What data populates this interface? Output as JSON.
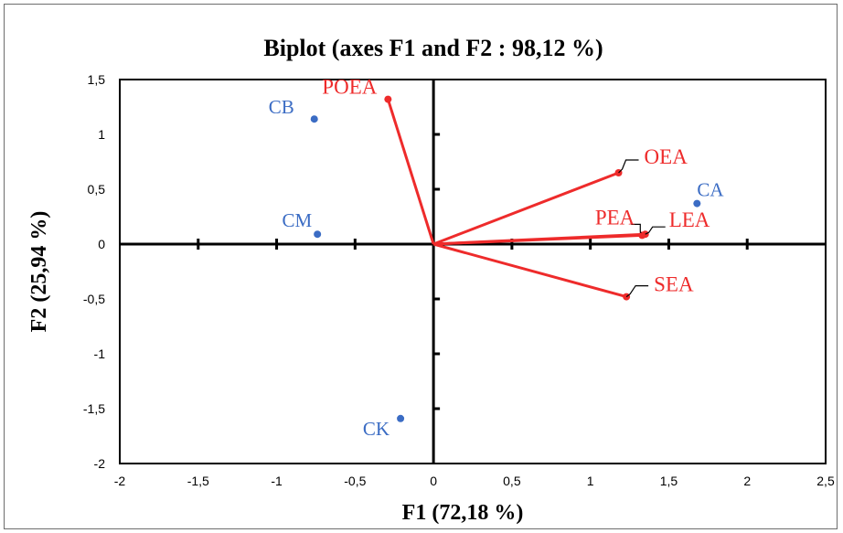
{
  "chart_data": {
    "type": "scatter",
    "title": "Biplot (axes F1 and F2 : 98,12 %)",
    "xlabel": "F1 (72,18 %)",
    "ylabel": "F2 (25,94 %)",
    "xlim": [
      -2,
      2.5
    ],
    "ylim": [
      -2,
      1.5
    ],
    "x_ticks": [
      "-2",
      "-1,5",
      "-1",
      "-0,5",
      "0",
      "0,5",
      "1",
      "1,5",
      "2",
      "2,5"
    ],
    "y_ticks": [
      "1,5",
      "1",
      "0,5",
      "0",
      "-0,5",
      "-1",
      "-1,5",
      "-2"
    ],
    "grid": false,
    "colors": {
      "observations": "#3b6cc4",
      "variables": "#ee2b2b",
      "axes": "#000000"
    },
    "observations": [
      {
        "label": "CB",
        "x": -0.76,
        "y": 1.14
      },
      {
        "label": "CM",
        "x": -0.74,
        "y": 0.09
      },
      {
        "label": "CK",
        "x": -0.21,
        "y": -1.59
      },
      {
        "label": "CA",
        "x": 1.68,
        "y": 0.37
      }
    ],
    "variables": [
      {
        "label": "POEA",
        "x": -0.29,
        "y": 1.32
      },
      {
        "label": "OEA",
        "x": 1.18,
        "y": 0.65
      },
      {
        "label": "PEA",
        "x": 1.33,
        "y": 0.08
      },
      {
        "label": "LEA",
        "x": 1.35,
        "y": 0.09
      },
      {
        "label": "SEA",
        "x": 1.23,
        "y": -0.48
      }
    ]
  }
}
